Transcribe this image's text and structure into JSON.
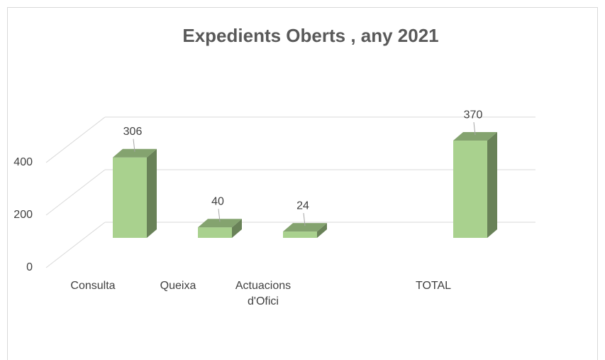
{
  "chart_data": {
    "type": "bar3d",
    "title": "Expedients Oberts , any 2021",
    "categories": [
      "Consulta",
      "Queixa",
      "Actuacions d'Ofici",
      null,
      "TOTAL"
    ],
    "values": [
      306,
      40,
      24,
      null,
      370
    ],
    "color": "#a9d18e",
    "ylim": [
      0,
      400
    ],
    "yticks": [
      0,
      200,
      400
    ],
    "grid": true
  }
}
